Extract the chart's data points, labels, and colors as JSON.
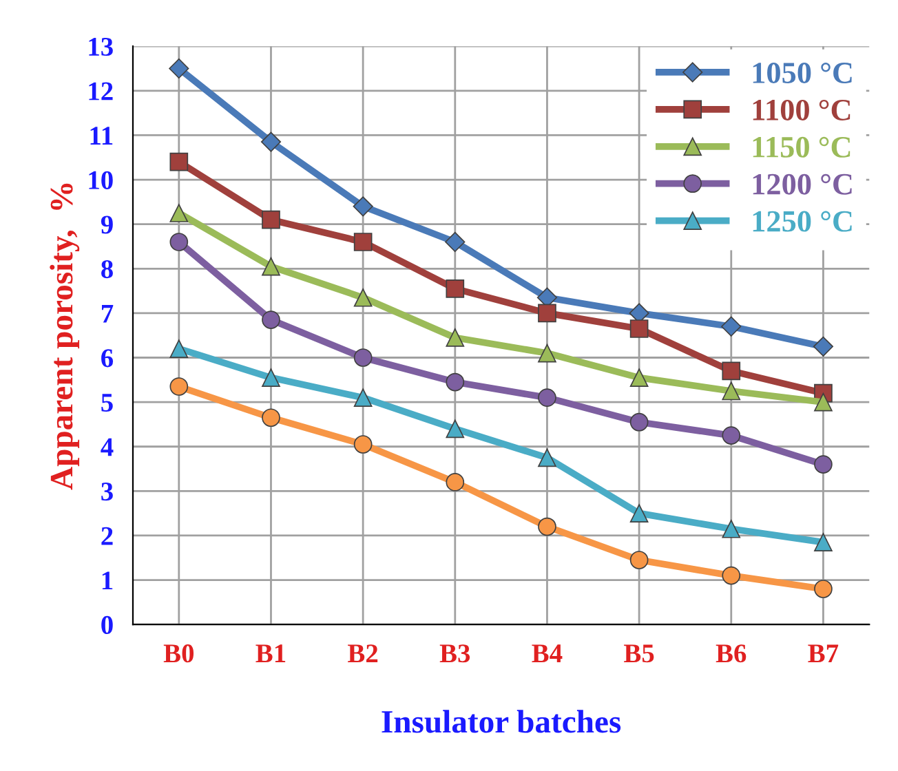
{
  "chart_data": {
    "type": "line",
    "xlabel": "Insulator batches",
    "ylabel": "Apparent porosity,  %",
    "categories": [
      "B0",
      "B1",
      "B2",
      "B3",
      "B4",
      "B5",
      "B6",
      "B7"
    ],
    "ylim": [
      0,
      13
    ],
    "yticks": [
      0,
      1,
      2,
      3,
      4,
      5,
      6,
      7,
      8,
      9,
      10,
      11,
      12,
      13
    ],
    "grid": true,
    "legend": "top right",
    "series": [
      {
        "name": "1050 °C",
        "color": "#4a7ab8",
        "marker": "diamond",
        "values": [
          12.5,
          10.85,
          9.4,
          8.6,
          7.35,
          7.0,
          6.7,
          6.25
        ]
      },
      {
        "name": "1100 °C",
        "color": "#a0403c",
        "marker": "square",
        "values": [
          10.4,
          9.1,
          8.6,
          7.55,
          7.0,
          6.65,
          5.7,
          5.2
        ]
      },
      {
        "name": "1150 °C",
        "color": "#9bbb59",
        "marker": "triangle",
        "values": [
          9.25,
          8.05,
          7.35,
          6.45,
          6.1,
          5.55,
          5.25,
          5.0
        ]
      },
      {
        "name": "1200 °C",
        "color": "#7d5fa0",
        "marker": "circle",
        "values": [
          8.6,
          6.85,
          6.0,
          5.45,
          5.1,
          4.55,
          4.25,
          3.6
        ]
      },
      {
        "name": "1250 °C",
        "color": "#4aacc6",
        "marker": "triangle",
        "values": [
          6.2,
          5.55,
          5.1,
          4.4,
          3.75,
          2.5,
          2.15,
          1.85
        ]
      },
      {
        "color": "#f79646",
        "marker": "circle",
        "values": [
          5.35,
          4.65,
          4.05,
          3.2,
          2.2,
          1.45,
          1.1,
          0.8
        ]
      }
    ]
  }
}
